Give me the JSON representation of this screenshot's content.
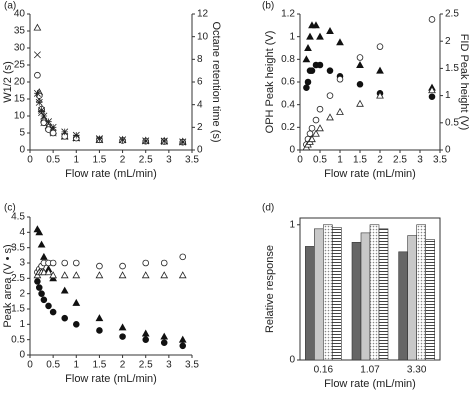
{
  "chart_data": [
    {
      "type": "scatter",
      "label": "(a)",
      "xlabel": "Flow rate (mL/min)",
      "ylabel": "W1/2 (s)",
      "y2label": "Octane retention time (s)",
      "xlim": [
        0,
        3.5
      ],
      "xticks": [
        0,
        0.5,
        1,
        1.5,
        2,
        2.5,
        3,
        3.5
      ],
      "ylim": [
        0,
        40
      ],
      "yticks": [
        0,
        5,
        10,
        15,
        20,
        25,
        30,
        35,
        40
      ],
      "y2lim": [
        0,
        12
      ],
      "y2ticks": [
        0,
        2,
        4,
        6,
        8,
        10,
        12
      ],
      "x": [
        0.16,
        0.2,
        0.25,
        0.3,
        0.4,
        0.5,
        0.75,
        1.0,
        1.5,
        2.0,
        2.5,
        2.9,
        3.3
      ],
      "series": [
        {
          "marker": "triangle",
          "filled": false,
          "color": "#222",
          "values": [
            36,
            17,
            12,
            9,
            7,
            5.5,
            4,
            3.5,
            3,
            3,
            2.8,
            2.7,
            2.5
          ]
        },
        {
          "marker": "x",
          "filled": false,
          "color": "#222",
          "values": [
            28,
            15,
            11,
            8,
            6.5,
            5,
            4,
            3.5,
            3,
            3,
            2.7,
            2.5,
            2.4
          ]
        },
        {
          "marker": "circle",
          "filled": false,
          "color": "#222",
          "values": [
            22,
            16,
            12,
            8,
            6,
            5,
            4,
            3.5,
            3,
            2.8,
            2.6,
            2.5,
            2.3
          ]
        },
        {
          "marker": "asterisk",
          "filled": false,
          "color": "#222",
          "axis": "y2",
          "values": [
            5,
            4.2,
            3.5,
            3,
            2.5,
            2,
            1.6,
            1.3,
            1,
            0.9,
            0.8,
            0.8,
            0.7
          ]
        }
      ]
    },
    {
      "type": "scatter",
      "label": "(b)",
      "xlabel": "Flow rate (mL/min)",
      "ylabel": "OPH Peak height (V)",
      "y2label": "FID Peak height (V)",
      "xlim": [
        0,
        3.5
      ],
      "xticks": [
        0,
        0.5,
        1,
        1.5,
        2,
        2.5,
        3,
        3.5
      ],
      "ylim": [
        0,
        1.2
      ],
      "yticks": [
        0,
        0.2,
        0.4,
        0.6,
        0.8,
        1,
        1.2
      ],
      "y2lim": [
        0,
        2.5
      ],
      "y2ticks": [
        0,
        0.5,
        1,
        1.5,
        2,
        2.5
      ],
      "x": [
        0.16,
        0.2,
        0.25,
        0.3,
        0.4,
        0.5,
        0.75,
        1.0,
        1.5,
        2.0,
        3.3
      ],
      "series": [
        {
          "marker": "triangle",
          "filled": true,
          "color": "#111",
          "values": [
            0.8,
            0.9,
            1.0,
            1.1,
            1.1,
            1.0,
            1.05,
            0.95,
            0.75,
            0.7,
            0.55
          ]
        },
        {
          "marker": "circle",
          "filled": true,
          "color": "#111",
          "values": [
            0.55,
            0.6,
            0.7,
            0.7,
            0.75,
            0.75,
            0.7,
            0.65,
            0.58,
            0.5,
            0.47
          ]
        },
        {
          "marker": "circle",
          "filled": false,
          "color": "#222",
          "axis": "y2",
          "values": [
            0.1,
            0.2,
            0.3,
            0.4,
            0.55,
            0.75,
            1.0,
            1.3,
            1.7,
            1.9,
            2.4
          ]
        },
        {
          "marker": "triangle",
          "filled": false,
          "color": "#222",
          "axis": "y2",
          "values": [
            0.05,
            0.1,
            0.15,
            0.2,
            0.3,
            0.4,
            0.6,
            0.7,
            0.85,
            1.0,
            1.1
          ]
        }
      ]
    },
    {
      "type": "scatter",
      "label": "(c)",
      "xlabel": "Flow rate (mL/min)",
      "ylabel": "Peak area (V • s)",
      "xlim": [
        0,
        3.5
      ],
      "xticks": [
        0,
        0.5,
        1,
        1.5,
        2,
        2.5,
        3,
        3.5
      ],
      "ylim": [
        0,
        4.5
      ],
      "yticks": [
        0,
        0.5,
        1,
        1.5,
        2,
        2.5,
        3,
        3.5,
        4,
        4.5
      ],
      "x": [
        0.16,
        0.2,
        0.25,
        0.3,
        0.4,
        0.5,
        0.75,
        1.0,
        1.5,
        2.0,
        2.5,
        2.9,
        3.3
      ],
      "series": [
        {
          "marker": "triangle",
          "filled": true,
          "color": "#111",
          "values": [
            4.1,
            4.0,
            3.6,
            3.2,
            2.8,
            2.5,
            2.1,
            1.7,
            1.2,
            0.9,
            0.7,
            0.6,
            0.5
          ]
        },
        {
          "marker": "circle",
          "filled": true,
          "color": "#111",
          "values": [
            2.4,
            2.2,
            2.0,
            1.8,
            1.6,
            1.4,
            1.2,
            1.0,
            0.8,
            0.6,
            0.5,
            0.4,
            0.3
          ]
        },
        {
          "marker": "circle",
          "filled": false,
          "color": "#222",
          "values": [
            2.7,
            2.8,
            2.9,
            3.0,
            3.0,
            3.0,
            3.0,
            3.0,
            2.9,
            2.9,
            3.0,
            3.0,
            3.2
          ]
        },
        {
          "marker": "triangle",
          "filled": false,
          "color": "#222",
          "values": [
            2.6,
            2.7,
            2.7,
            2.7,
            2.7,
            2.6,
            2.6,
            2.6,
            2.6,
            2.6,
            2.6,
            2.6,
            2.6
          ]
        }
      ]
    },
    {
      "type": "bar",
      "label": "(d)",
      "xlabel": "Flow rate (mL/min)",
      "ylabel": "Relative response",
      "ylim": [
        0,
        1.05
      ],
      "yticks": [
        0,
        1
      ],
      "categories": [
        "0.16",
        "1.07",
        "3.30"
      ],
      "series": [
        {
          "color": "#666666",
          "pattern": "solid",
          "values": [
            0.84,
            0.87,
            0.8
          ]
        },
        {
          "color": "#c8c8c8",
          "pattern": "solid",
          "values": [
            0.97,
            0.94,
            0.92
          ]
        },
        {
          "color": "#888888",
          "pattern": "dots",
          "values": [
            1.0,
            1.0,
            1.0
          ]
        },
        {
          "color": "#444444",
          "pattern": "hlines",
          "values": [
            0.98,
            0.97,
            0.89
          ]
        }
      ]
    }
  ]
}
